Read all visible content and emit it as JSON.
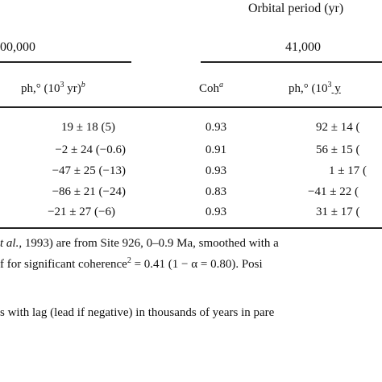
{
  "header": {
    "spanner": "Orbital period (yr)",
    "period_left": "00,000",
    "period_right": "41,000"
  },
  "columns": {
    "ph_prefix": "ph,° (10",
    "ph_exp": "3",
    "ph_unit": " yr)",
    "ph_sup": "b",
    "coh": "Coh",
    "coh_sup": "a",
    "ph2_prefix": "ph,° (10",
    "ph2_exp": "3",
    "ph2_suffix": " y"
  },
  "rows": [
    {
      "ph": "19 ± 18 (5)",
      "coh": "0.93",
      "ph2": "92 ± 14 ("
    },
    {
      "ph": "−2 ± 24 (−0.6)",
      "coh": "0.91",
      "ph2": "56 ± 15 ("
    },
    {
      "ph": "−47 ± 25 (−13)",
      "coh": "0.93",
      "ph2": "1 ± 17 ("
    },
    {
      "ph": "−86 ± 21 (−24)",
      "coh": "0.83",
      "ph2": "−41 ± 22 ("
    },
    {
      "ph": "−21 ± 27 (−6)",
      "coh": "0.93",
      "ph2": "31 ± 17 ("
    }
  ],
  "notes": {
    "line1_italic": "t al.,",
    "line1_rest": " 1993) are from Site 926, 0–0.9 Ma, smoothed with a",
    "line2_a": "f for significant coherence",
    "line2_sup": "2",
    "line2_b": " = 0.41 (1 − α = 0.80). Posi",
    "line3": "s with lag (lead if negative) in thousands of years in pare"
  }
}
